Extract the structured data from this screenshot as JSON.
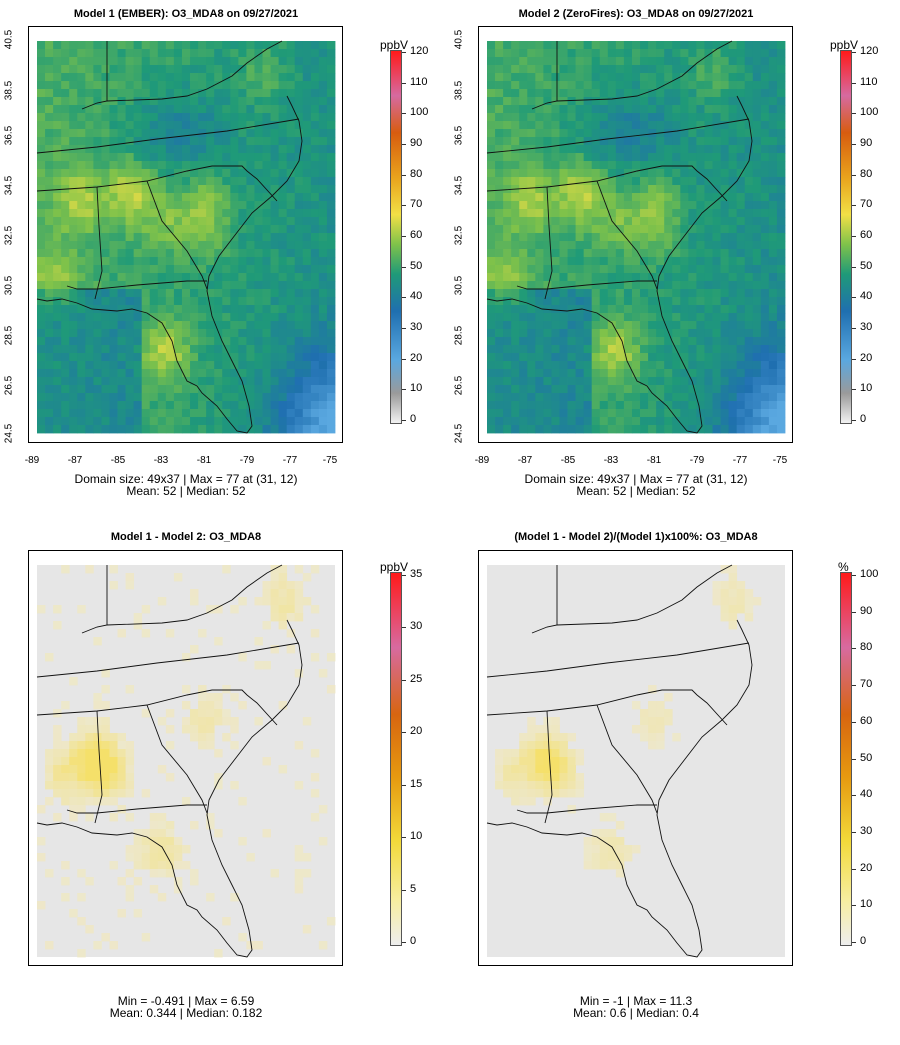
{
  "panels": [
    {
      "title": "Model 1 (EMBER): O3_MDA8 on 09/27/2021",
      "stat1": "Domain size: 49x37 | Max = 77 at (31, 12)",
      "stat2": "Mean: 52 |  Median: 52",
      "unit": "ppbV",
      "ticks": [
        "120",
        "110",
        "100",
        "90",
        "80",
        "70",
        "60",
        "50",
        "40",
        "30",
        "20",
        "10",
        "0"
      ],
      "y_ticks": [
        "40.5",
        "38.5",
        "36.5",
        "34.5",
        "32.5",
        "30.5",
        "28.5",
        "26.5",
        "24.5"
      ],
      "x_ticks": [
        "-89",
        "-87",
        "-85",
        "-83",
        "-81",
        "-79",
        "-77",
        "-75"
      ]
    },
    {
      "title": "Model 2 (ZeroFires): O3_MDA8 on 09/27/2021",
      "stat1": "Domain size: 49x37 | Max = 77 at (31, 12)",
      "stat2": "Mean: 52 |  Median: 52",
      "unit": "ppbV",
      "ticks": [
        "120",
        "110",
        "100",
        "90",
        "80",
        "70",
        "60",
        "50",
        "40",
        "30",
        "20",
        "10",
        "0"
      ],
      "y_ticks": [
        "40.5",
        "38.5",
        "36.5",
        "34.5",
        "32.5",
        "30.5",
        "28.5",
        "26.5",
        "24.5"
      ],
      "x_ticks": [
        "-89",
        "-87",
        "-85",
        "-83",
        "-81",
        "-79",
        "-77",
        "-75"
      ]
    },
    {
      "title": "Model 1 - Model 2: O3_MDA8",
      "stat1": "Min = -0.491 | Max = 6.59",
      "stat2": "Mean: 0.344 |  Median: 0.182",
      "unit": "ppbV",
      "ticks": [
        "35",
        "30",
        "25",
        "20",
        "15",
        "10",
        "5",
        "0"
      ]
    },
    {
      "title": "(Model 1 - Model 2)/(Model 1)x100%: O3_MDA8",
      "stat1": "Min = -1 | Max = 11.3",
      "stat2": "Mean: 0.6 |  Median: 0.4",
      "unit": "%",
      "ticks": [
        "100",
        "90",
        "80",
        "70",
        "60",
        "50",
        "40",
        "30",
        "20",
        "10",
        "0"
      ]
    }
  ],
  "colors": {
    "ozone_low": "#6cb6e8",
    "ozone_mid": "#1f9a78",
    "ozone_high": "#f2e046",
    "diff_bg": "#e6e6e6",
    "diff_hot": "#f7e7a0"
  }
}
